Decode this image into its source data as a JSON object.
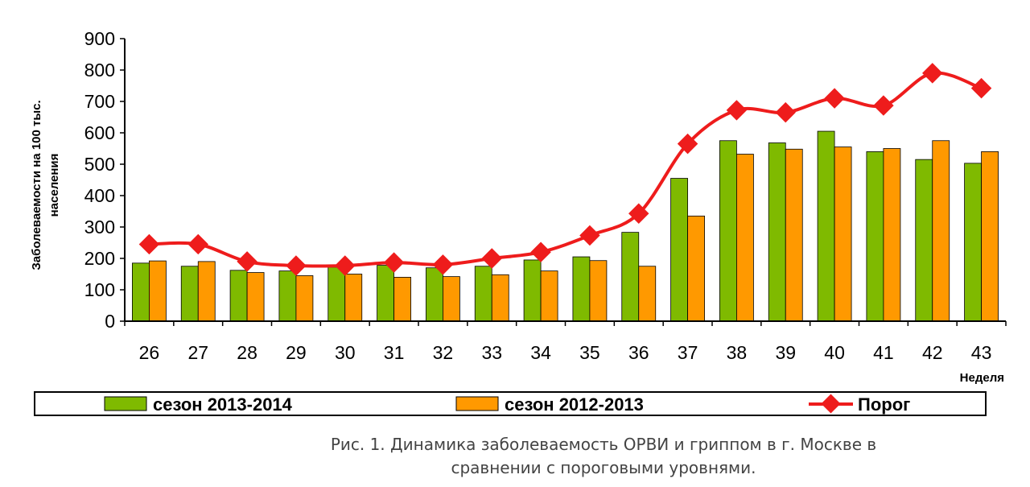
{
  "chart_data": {
    "type": "bar",
    "xlabel": "Неделя",
    "ylabel": "Заболеваемости на 100 тыс. населения",
    "ylabel_lines": [
      "Заболеваемости на 100 тыс.",
      "населения"
    ],
    "ylim": [
      0,
      900
    ],
    "yticks": [
      0,
      100,
      200,
      300,
      400,
      500,
      600,
      700,
      800,
      900
    ],
    "categories": [
      "26",
      "27",
      "28",
      "29",
      "30",
      "31",
      "32",
      "33",
      "34",
      "35",
      "36",
      "37",
      "38",
      "39",
      "40",
      "41",
      "42",
      "43"
    ],
    "series": [
      {
        "name": "сезон 2013-2014",
        "kind": "bar",
        "color": "#7fba00",
        "values": [
          185,
          175,
          162,
          160,
          172,
          178,
          170,
          175,
          195,
          205,
          283,
          455,
          575,
          568,
          605,
          540,
          515,
          503
        ]
      },
      {
        "name": "сезон 2012-2013",
        "kind": "bar",
        "color": "#ff9900",
        "values": [
          192,
          190,
          155,
          145,
          150,
          140,
          142,
          148,
          160,
          193,
          175,
          335,
          532,
          548,
          555,
          550,
          575,
          540
        ]
      },
      {
        "name": "Порог",
        "kind": "line",
        "color": "#ee1c1c",
        "values": [
          245,
          245,
          190,
          177,
          177,
          187,
          180,
          200,
          220,
          273,
          343,
          565,
          672,
          665,
          710,
          687,
          790,
          742
        ]
      }
    ],
    "grid": false,
    "legend_position": "bottom"
  },
  "caption": {
    "line1": "Рис. 1. Динамика заболеваемость ОРВИ и гриппом в г. Москве в",
    "line2": "сравнении с пороговыми уровнями."
  }
}
